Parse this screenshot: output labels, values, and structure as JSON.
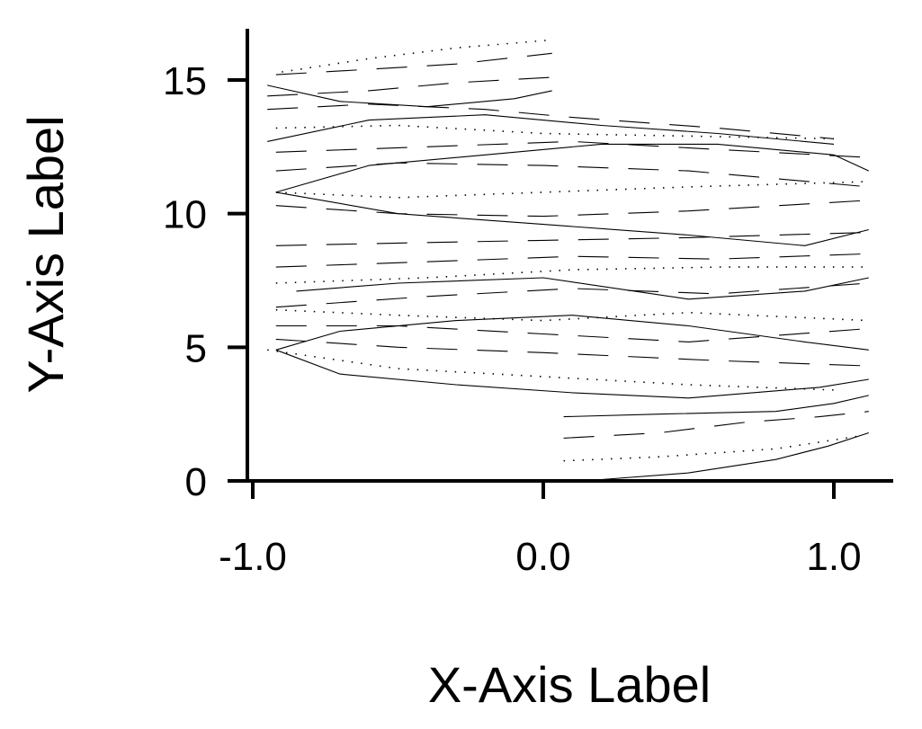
{
  "chart_data": {
    "type": "line",
    "title": "",
    "xlabel": "X-Axis Label",
    "ylabel": "Y-Axis Label",
    "xlim": [
      -1.0,
      1.15
    ],
    "ylim": [
      0,
      17
    ],
    "xticks": [
      -1.0,
      0.0,
      1.0
    ],
    "xtick_labels": [
      "-1.0",
      "0.0",
      "1.0"
    ],
    "yticks": [
      0,
      5,
      10,
      15
    ],
    "ytick_labels": [
      "0",
      "5",
      "10",
      "15"
    ],
    "grid": false,
    "legend": "none",
    "line_color": "#000000",
    "description_series": [
      {
        "style": "dotted",
        "points": [
          [
            0.07,
            0.75
          ],
          [
            0.4,
            0.9
          ],
          [
            0.8,
            1.2
          ],
          [
            1.1,
            1.7
          ]
        ]
      },
      {
        "style": "solid",
        "points": [
          [
            0.2,
            0.05
          ],
          [
            0.5,
            0.3
          ],
          [
            0.8,
            0.8
          ],
          [
            0.98,
            1.3
          ],
          [
            1.12,
            1.8
          ]
        ]
      },
      {
        "style": "dashed",
        "points": [
          [
            0.07,
            1.6
          ],
          [
            0.4,
            1.8
          ],
          [
            0.7,
            2.2
          ],
          [
            0.95,
            2.4
          ],
          [
            1.12,
            2.6
          ]
        ]
      },
      {
        "style": "solid",
        "points": [
          [
            0.07,
            2.4
          ],
          [
            0.4,
            2.5
          ],
          [
            0.8,
            2.6
          ],
          [
            1.0,
            2.9
          ],
          [
            1.12,
            3.2
          ]
        ]
      },
      {
        "style": "dotted",
        "points": [
          [
            -0.95,
            4.9
          ],
          [
            -0.5,
            4.2
          ],
          [
            0.0,
            3.9
          ],
          [
            0.5,
            3.6
          ],
          [
            1.0,
            3.4
          ]
        ]
      },
      {
        "style": "solid",
        "points": [
          [
            -0.92,
            4.9
          ],
          [
            -0.7,
            4.0
          ],
          [
            -0.3,
            3.6
          ],
          [
            0.1,
            3.3
          ],
          [
            0.5,
            3.1
          ],
          [
            0.95,
            3.5
          ],
          [
            1.12,
            3.8
          ]
        ]
      },
      {
        "style": "dashed",
        "points": [
          [
            -0.92,
            5.3
          ],
          [
            -0.5,
            5.0
          ],
          [
            0.0,
            4.8
          ],
          [
            0.6,
            4.5
          ],
          [
            1.12,
            4.3
          ]
        ]
      },
      {
        "style": "solid",
        "points": [
          [
            -0.92,
            4.9
          ],
          [
            -0.7,
            5.6
          ],
          [
            -0.3,
            6.0
          ],
          [
            0.1,
            6.2
          ],
          [
            0.5,
            5.8
          ],
          [
            0.9,
            5.2
          ],
          [
            1.12,
            4.9
          ]
        ]
      },
      {
        "style": "dashed",
        "points": [
          [
            -0.92,
            5.8
          ],
          [
            -0.5,
            5.8
          ],
          [
            0.0,
            5.5
          ],
          [
            0.5,
            5.2
          ],
          [
            1.12,
            5.7
          ]
        ]
      },
      {
        "style": "dotted",
        "points": [
          [
            -0.92,
            6.4
          ],
          [
            -0.5,
            6.2
          ],
          [
            0.0,
            6.0
          ],
          [
            0.5,
            6.3
          ],
          [
            1.12,
            6.0
          ]
        ]
      },
      {
        "style": "dashed",
        "points": [
          [
            -0.92,
            6.5
          ],
          [
            -0.4,
            6.9
          ],
          [
            0.1,
            7.2
          ],
          [
            0.6,
            7.0
          ],
          [
            1.12,
            7.4
          ]
        ]
      },
      {
        "style": "solid",
        "points": [
          [
            -0.85,
            7.1
          ],
          [
            -0.5,
            7.4
          ],
          [
            0.0,
            7.6
          ],
          [
            0.5,
            6.8
          ],
          [
            0.9,
            7.1
          ],
          [
            1.12,
            7.6
          ]
        ]
      },
      {
        "style": "dotted",
        "points": [
          [
            -0.92,
            7.4
          ],
          [
            -0.4,
            7.6
          ],
          [
            0.1,
            7.9
          ],
          [
            0.6,
            8.0
          ],
          [
            1.12,
            8.0
          ]
        ]
      },
      {
        "style": "dashed",
        "points": [
          [
            -0.92,
            8.0
          ],
          [
            -0.4,
            8.2
          ],
          [
            0.1,
            8.4
          ],
          [
            0.6,
            8.3
          ],
          [
            1.12,
            8.5
          ]
        ]
      },
      {
        "style": "dashed",
        "points": [
          [
            -0.92,
            8.8
          ],
          [
            -0.5,
            8.9
          ],
          [
            0.0,
            9.0
          ],
          [
            0.5,
            9.1
          ],
          [
            1.12,
            9.3
          ]
        ]
      },
      {
        "style": "solid",
        "points": [
          [
            -0.92,
            10.8
          ],
          [
            -0.5,
            10.0
          ],
          [
            0.0,
            9.6
          ],
          [
            0.5,
            9.2
          ],
          [
            0.9,
            8.8
          ],
          [
            1.12,
            9.4
          ]
        ]
      },
      {
        "style": "dashed",
        "points": [
          [
            -0.92,
            10.3
          ],
          [
            -0.5,
            10.0
          ],
          [
            0.0,
            9.9
          ],
          [
            0.5,
            10.1
          ],
          [
            1.12,
            10.5
          ]
        ]
      },
      {
        "style": "dotted",
        "points": [
          [
            -0.92,
            10.8
          ],
          [
            -0.5,
            10.6
          ],
          [
            0.0,
            10.8
          ],
          [
            0.5,
            11.0
          ],
          [
            1.12,
            11.2
          ]
        ]
      },
      {
        "style": "solid",
        "points": [
          [
            -0.92,
            10.8
          ],
          [
            -0.6,
            11.8
          ],
          [
            -0.2,
            12.2
          ],
          [
            0.2,
            12.6
          ],
          [
            0.6,
            12.6
          ],
          [
            1.0,
            12.2
          ],
          [
            1.12,
            11.6
          ]
        ]
      },
      {
        "style": "dashed",
        "points": [
          [
            -0.92,
            11.6
          ],
          [
            -0.5,
            11.9
          ],
          [
            0.0,
            11.8
          ],
          [
            0.5,
            11.6
          ],
          [
            1.12,
            11.0
          ]
        ]
      },
      {
        "style": "dashed",
        "points": [
          [
            -0.92,
            12.3
          ],
          [
            -0.4,
            12.5
          ],
          [
            0.1,
            12.7
          ],
          [
            0.6,
            12.4
          ],
          [
            1.12,
            12.1
          ]
        ]
      },
      {
        "style": "solid",
        "points": [
          [
            -0.95,
            12.7
          ],
          [
            -0.6,
            13.5
          ],
          [
            -0.2,
            13.7
          ],
          [
            0.2,
            13.3
          ],
          [
            0.6,
            13.0
          ],
          [
            1.0,
            12.6
          ]
        ]
      },
      {
        "style": "dotted",
        "points": [
          [
            -0.92,
            13.2
          ],
          [
            -0.5,
            13.3
          ],
          [
            0.0,
            13.0
          ],
          [
            0.5,
            12.9
          ],
          [
            1.0,
            12.8
          ]
        ]
      },
      {
        "style": "dashed",
        "points": [
          [
            -0.95,
            13.9
          ],
          [
            -0.6,
            14.1
          ],
          [
            -0.2,
            13.9
          ],
          [
            0.1,
            13.6
          ],
          [
            0.6,
            13.2
          ],
          [
            1.0,
            12.8
          ]
        ]
      },
      {
        "style": "solid",
        "points": [
          [
            -0.95,
            14.8
          ],
          [
            -0.7,
            14.2
          ],
          [
            -0.4,
            14.0
          ],
          [
            -0.1,
            14.3
          ],
          [
            0.03,
            14.6
          ]
        ]
      },
      {
        "style": "dashed",
        "points": [
          [
            -0.92,
            15.2
          ],
          [
            -0.6,
            15.4
          ],
          [
            -0.3,
            15.6
          ],
          [
            0.03,
            16.0
          ]
        ]
      },
      {
        "style": "dotted",
        "points": [
          [
            -0.9,
            15.3
          ],
          [
            -0.6,
            15.8
          ],
          [
            -0.3,
            16.2
          ],
          [
            0.03,
            16.5
          ]
        ]
      },
      {
        "style": "dashed",
        "points": [
          [
            -0.95,
            14.4
          ],
          [
            -0.6,
            14.6
          ],
          [
            -0.3,
            14.9
          ],
          [
            0.03,
            15.1
          ]
        ]
      }
    ]
  }
}
